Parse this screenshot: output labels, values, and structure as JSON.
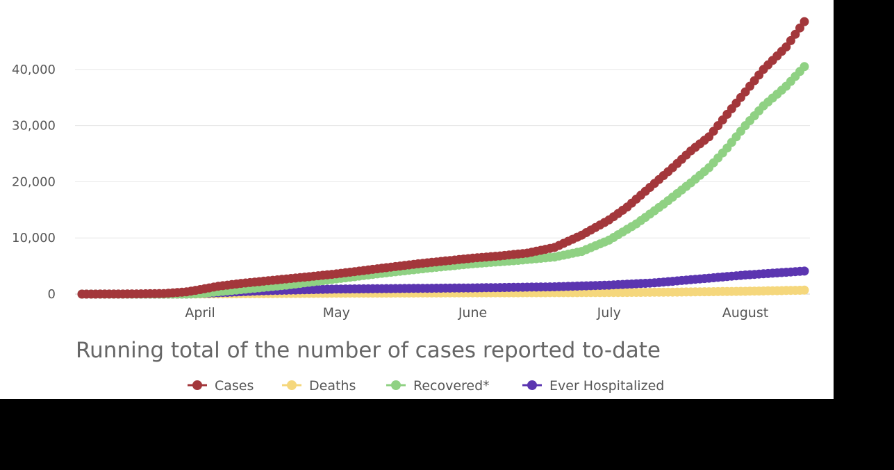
{
  "chart_data": {
    "type": "line",
    "title": "",
    "subtitle": "Running total of the number of cases reported to-date",
    "xlabel": "",
    "ylabel": "",
    "x_axis": {
      "ticks": [
        "April",
        "May",
        "June",
        "July",
        "August"
      ],
      "range_days": [
        0,
        159
      ],
      "tick_days": [
        26,
        56,
        86,
        116,
        146
      ]
    },
    "y_axis": {
      "ticks": [
        "0",
        "10,000",
        "20,000",
        "30,000",
        "40,000"
      ],
      "tick_values": [
        0,
        10000,
        20000,
        30000,
        40000
      ],
      "range": [
        0,
        50000
      ]
    },
    "grid": true,
    "legend": "bottom",
    "series": [
      {
        "name": "Cases",
        "color": "#a3373b",
        "points": [
          [
            0,
            0
          ],
          [
            10,
            20
          ],
          [
            18,
            100
          ],
          [
            23,
            400
          ],
          [
            26,
            800
          ],
          [
            30,
            1400
          ],
          [
            35,
            1900
          ],
          [
            40,
            2300
          ],
          [
            45,
            2700
          ],
          [
            50,
            3100
          ],
          [
            56,
            3600
          ],
          [
            62,
            4200
          ],
          [
            68,
            4800
          ],
          [
            74,
            5400
          ],
          [
            80,
            5900
          ],
          [
            86,
            6400
          ],
          [
            92,
            6800
          ],
          [
            98,
            7300
          ],
          [
            104,
            8300
          ],
          [
            110,
            10500
          ],
          [
            116,
            13200
          ],
          [
            120,
            15500
          ],
          [
            125,
            19000
          ],
          [
            130,
            22500
          ],
          [
            134,
            25500
          ],
          [
            138,
            28000
          ],
          [
            142,
            32000
          ],
          [
            146,
            36000
          ],
          [
            150,
            40000
          ],
          [
            155,
            44000
          ],
          [
            159,
            48500
          ]
        ]
      },
      {
        "name": "Deaths",
        "color": "#f5d77c",
        "points": [
          [
            0,
            0
          ],
          [
            23,
            0
          ],
          [
            26,
            20
          ],
          [
            40,
            80
          ],
          [
            56,
            150
          ],
          [
            86,
            220
          ],
          [
            116,
            280
          ],
          [
            130,
            350
          ],
          [
            146,
            500
          ],
          [
            159,
            700
          ]
        ]
      },
      {
        "name": "Recovered*",
        "color": "#8fd183",
        "points": [
          [
            0,
            0
          ],
          [
            23,
            0
          ],
          [
            26,
            100
          ],
          [
            35,
            800
          ],
          [
            45,
            1600
          ],
          [
            56,
            2700
          ],
          [
            66,
            3700
          ],
          [
            76,
            4600
          ],
          [
            86,
            5400
          ],
          [
            96,
            6000
          ],
          [
            104,
            6600
          ],
          [
            110,
            7600
          ],
          [
            116,
            9600
          ],
          [
            122,
            12500
          ],
          [
            128,
            16000
          ],
          [
            134,
            19800
          ],
          [
            138,
            22500
          ],
          [
            142,
            26000
          ],
          [
            146,
            30000
          ],
          [
            150,
            33500
          ],
          [
            155,
            37000
          ],
          [
            159,
            40500
          ]
        ]
      },
      {
        "name": "Ever Hospitalized",
        "color": "#5b35b0",
        "points": [
          [
            0,
            0
          ],
          [
            23,
            0
          ],
          [
            26,
            100
          ],
          [
            40,
            600
          ],
          [
            56,
            900
          ],
          [
            86,
            1100
          ],
          [
            104,
            1300
          ],
          [
            116,
            1600
          ],
          [
            126,
            2000
          ],
          [
            136,
            2700
          ],
          [
            146,
            3400
          ],
          [
            159,
            4100
          ]
        ]
      }
    ]
  }
}
